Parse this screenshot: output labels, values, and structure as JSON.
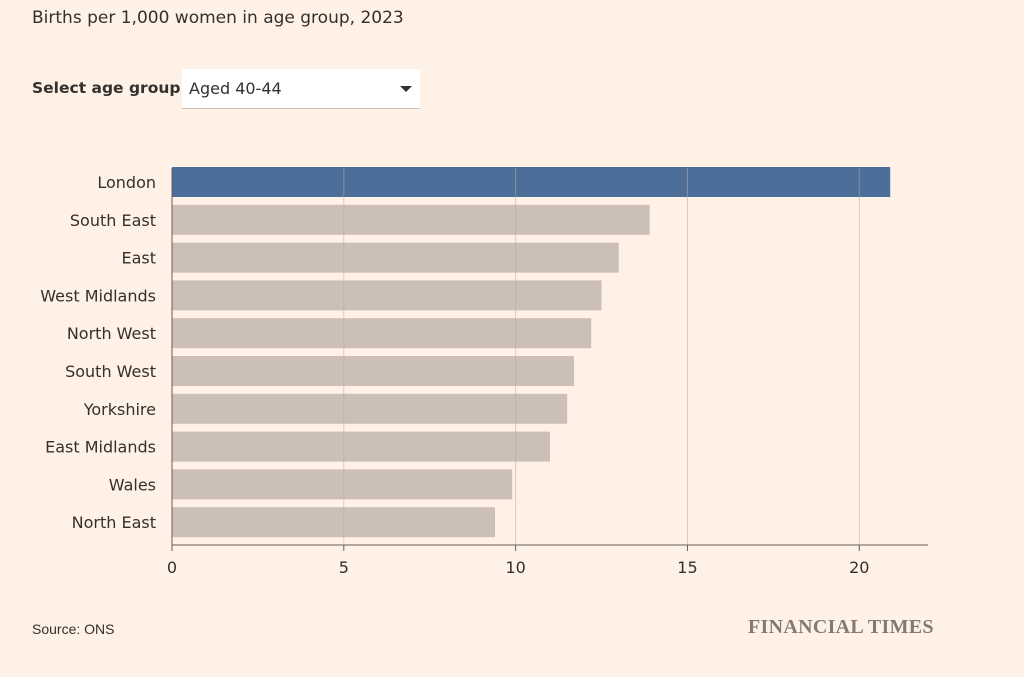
{
  "header": {
    "subtitle": "Births per 1,000 women in age group, 2023"
  },
  "selector": {
    "label": "Select age group:",
    "value": "Aged 40-44"
  },
  "footer": {
    "source": "Source: ONS",
    "logo": "FINANCIAL TIMES"
  },
  "colors": {
    "highlight": "#4b6f98",
    "bar": "#ccbfb7",
    "grid": "#ccbfb7",
    "background": "#fff1e5"
  },
  "chart_data": {
    "type": "bar",
    "orientation": "horizontal",
    "categories": [
      "London",
      "South East",
      "East",
      "West Midlands",
      "North West",
      "South West",
      "Yorkshire",
      "East Midlands",
      "Wales",
      "North East"
    ],
    "values": [
      20.9,
      13.9,
      13.0,
      12.5,
      12.2,
      11.7,
      11.5,
      11.0,
      9.9,
      9.4
    ],
    "highlight": "London",
    "xlim": [
      0,
      22
    ],
    "xticks": [
      0,
      5,
      10,
      15,
      20
    ],
    "grid": true
  }
}
